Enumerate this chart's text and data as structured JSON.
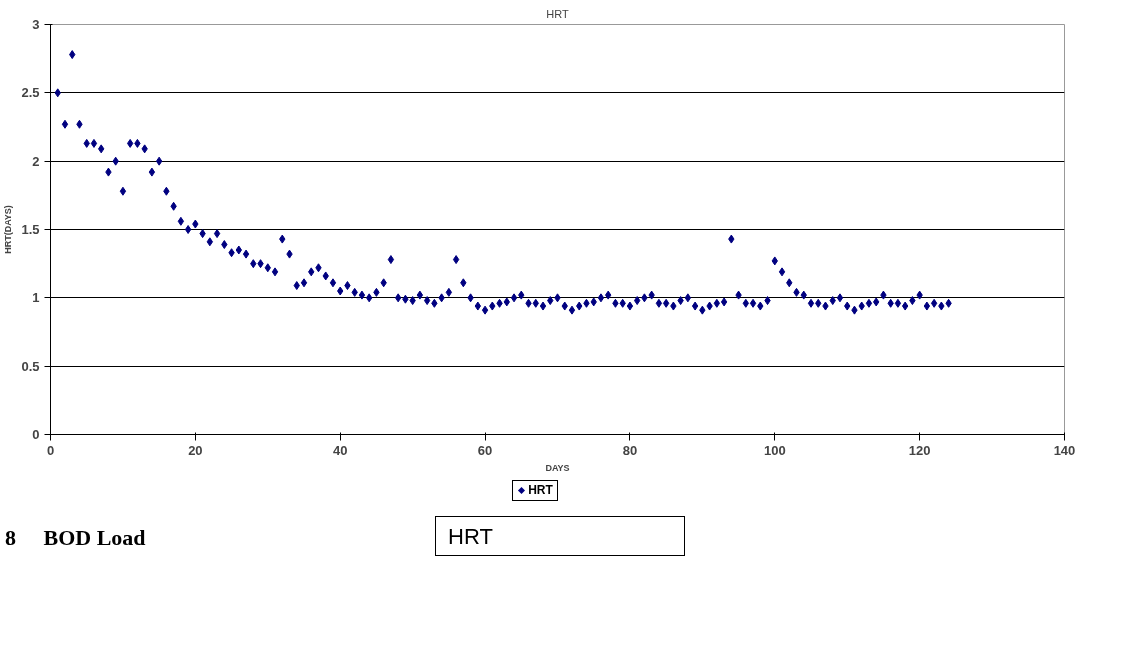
{
  "chart_data": {
    "type": "scatter",
    "title": "HRT",
    "xlabel": "DAYS",
    "ylabel": "HRT(DAYS)",
    "xlim": [
      0,
      140
    ],
    "xticks": [
      0,
      20,
      40,
      60,
      80,
      100,
      120,
      140
    ],
    "ylim": [
      0,
      3
    ],
    "yticks": [
      0,
      0.5,
      1,
      1.5,
      2,
      2.5,
      3
    ],
    "grid": "y",
    "legend": "bottom",
    "marker": "diamond",
    "x": [
      1,
      2,
      3,
      4,
      5,
      6,
      7,
      8,
      9,
      10,
      11,
      12,
      13,
      14,
      15,
      16,
      17,
      18,
      19,
      20,
      21,
      22,
      23,
      24,
      25,
      26,
      27,
      28,
      29,
      30,
      31,
      32,
      33,
      34,
      35,
      36,
      37,
      38,
      39,
      40,
      41,
      42,
      43,
      44,
      45,
      46,
      47,
      48,
      49,
      50,
      51,
      52,
      53,
      54,
      55,
      56,
      57,
      58,
      59,
      60,
      61,
      62,
      63,
      64,
      65,
      66,
      67,
      68,
      69,
      70,
      71,
      72,
      73,
      74,
      75,
      76,
      77,
      78,
      79,
      80,
      81,
      82,
      83,
      84,
      85,
      86,
      87,
      88,
      89,
      90,
      91,
      92,
      93,
      94,
      95,
      96,
      97,
      98,
      99,
      100,
      101,
      102,
      103,
      104,
      105,
      106,
      107,
      108,
      109,
      110,
      111,
      112,
      113,
      114,
      115,
      116,
      117,
      118,
      119,
      120,
      121,
      122,
      123,
      124
    ],
    "series": [
      {
        "name": "HRT",
        "color": "#000080",
        "values": [
          2.5,
          2.27,
          2.78,
          2.27,
          2.13,
          2.13,
          2.09,
          1.92,
          2.0,
          1.78,
          2.13,
          2.13,
          2.09,
          1.92,
          2.0,
          1.78,
          1.67,
          1.56,
          1.5,
          1.54,
          1.47,
          1.41,
          1.47,
          1.39,
          1.33,
          1.35,
          1.32,
          1.25,
          1.25,
          1.22,
          1.19,
          1.43,
          1.32,
          1.09,
          1.11,
          1.19,
          1.22,
          1.16,
          1.11,
          1.05,
          1.09,
          1.04,
          1.02,
          1.0,
          1.04,
          1.11,
          1.28,
          1.0,
          0.99,
          0.98,
          1.02,
          0.98,
          0.96,
          1.0,
          1.04,
          1.28,
          1.11,
          1.0,
          0.94,
          0.91,
          0.94,
          0.96,
          0.97,
          1.0,
          1.02,
          0.96,
          0.96,
          0.94,
          0.98,
          1.0,
          0.94,
          0.91,
          0.94,
          0.96,
          0.97,
          1.0,
          1.02,
          0.96,
          0.96,
          0.94,
          0.98,
          1.0,
          1.02,
          0.96,
          0.96,
          0.94,
          0.98,
          1.0,
          0.94,
          0.91,
          0.94,
          0.96,
          0.97,
          1.43,
          1.02,
          0.96,
          0.96,
          0.94,
          0.98,
          1.27,
          1.19,
          1.11,
          1.04,
          1.02,
          0.96,
          0.96,
          0.94,
          0.98,
          1.0,
          0.94,
          0.91,
          0.94,
          0.96,
          0.97,
          1.02,
          0.96,
          0.96,
          0.94,
          0.98,
          1.02,
          0.94,
          0.96,
          0.94,
          0.96
        ]
      }
    ],
    "annotations": [
      "8     BOD Load",
      "HRT"
    ]
  }
}
